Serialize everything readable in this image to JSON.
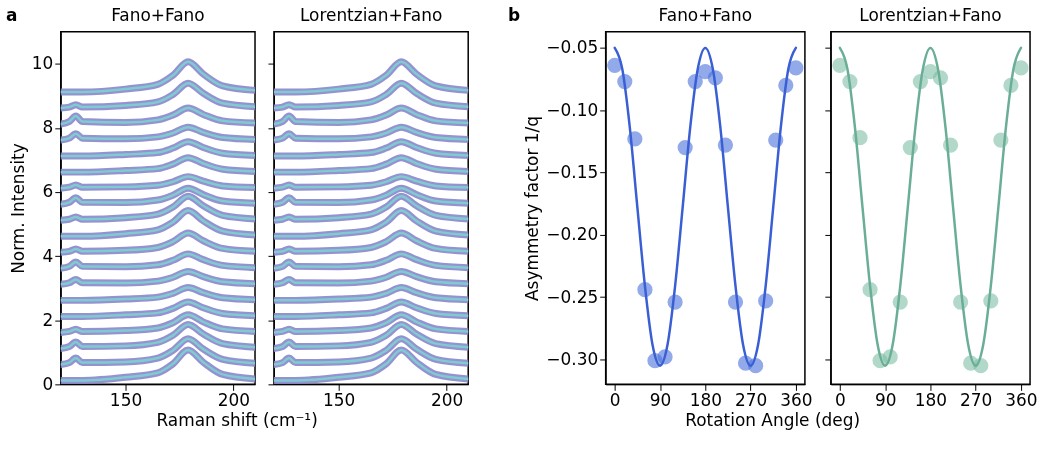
{
  "chart_data": [
    {
      "type": "line",
      "title": "Fano+Fano",
      "xlabel": "Raman shift (cm⁻¹)",
      "ylabel": "Norm. Intensity",
      "annotations": [
        "a"
      ],
      "xlim": [
        120,
        210
      ],
      "ylim": [
        0,
        11
      ],
      "xticks": [
        150,
        200
      ],
      "yticks": [
        0,
        2,
        4,
        6,
        8,
        10
      ],
      "x": [
        120,
        124,
        127,
        130,
        150,
        165,
        172,
        179,
        186,
        195,
        210
      ],
      "series": [
        {
          "color": "#8a86cc",
          "values": [
            0.12,
            0.12,
            0.12,
            0.12,
            0.22,
            0.36,
            0.64,
            1.07,
            0.69,
            0.31,
            0.17
          ]
        },
        {
          "color": "#7fcbd0",
          "values": [
            0.12,
            0.12,
            0.12,
            0.12,
            0.22,
            0.36,
            0.64,
            1.07,
            0.69,
            0.31,
            0.17
          ]
        },
        {
          "color": "#8a86cc",
          "values": [
            0.62,
            0.68,
            0.82,
            0.68,
            0.7,
            0.82,
            1.06,
            1.42,
            1.1,
            0.78,
            0.66
          ]
        },
        {
          "color": "#7fcbd0",
          "values": [
            0.62,
            0.68,
            0.82,
            0.68,
            0.7,
            0.82,
            1.06,
            1.42,
            1.1,
            0.78,
            0.66
          ]
        },
        {
          "color": "#8a86cc",
          "values": [
            1.12,
            1.18,
            1.32,
            1.18,
            1.2,
            1.31,
            1.53,
            1.87,
            1.57,
            1.27,
            1.16
          ]
        },
        {
          "color": "#7fcbd0",
          "values": [
            1.12,
            1.18,
            1.32,
            1.18,
            1.2,
            1.31,
            1.53,
            1.87,
            1.57,
            1.27,
            1.16
          ]
        },
        {
          "color": "#8a86cc",
          "values": [
            1.62,
            1.65,
            1.72,
            1.65,
            1.68,
            1.76,
            1.92,
            2.17,
            1.95,
            1.73,
            1.65
          ]
        },
        {
          "color": "#7fcbd0",
          "values": [
            1.62,
            1.65,
            1.72,
            1.65,
            1.68,
            1.76,
            1.92,
            2.17,
            1.95,
            1.73,
            1.65
          ]
        },
        {
          "color": "#8a86cc",
          "values": [
            2.12,
            2.12,
            2.12,
            2.12,
            2.17,
            2.23,
            2.37,
            2.57,
            2.39,
            2.21,
            2.14
          ]
        },
        {
          "color": "#7fcbd0",
          "values": [
            2.12,
            2.12,
            2.12,
            2.12,
            2.17,
            2.23,
            2.37,
            2.57,
            2.39,
            2.21,
            2.14
          ]
        },
        {
          "color": "#8a86cc",
          "values": [
            2.62,
            2.62,
            2.62,
            2.62,
            2.66,
            2.72,
            2.84,
            3.02,
            2.86,
            2.7,
            2.64
          ]
        },
        {
          "color": "#7fcbd0",
          "values": [
            2.62,
            2.62,
            2.62,
            2.62,
            2.66,
            2.72,
            2.84,
            3.02,
            2.86,
            2.7,
            2.64
          ]
        },
        {
          "color": "#8a86cc",
          "values": [
            3.12,
            3.17,
            3.27,
            3.17,
            3.16,
            3.22,
            3.34,
            3.52,
            3.36,
            3.2,
            3.14
          ]
        },
        {
          "color": "#7fcbd0",
          "values": [
            3.12,
            3.17,
            3.27,
            3.17,
            3.16,
            3.22,
            3.34,
            3.52,
            3.36,
            3.2,
            3.14
          ]
        },
        {
          "color": "#8a86cc",
          "values": [
            3.62,
            3.68,
            3.82,
            3.68,
            3.67,
            3.73,
            3.87,
            4.07,
            3.89,
            3.71,
            3.64
          ]
        },
        {
          "color": "#7fcbd0",
          "values": [
            3.62,
            3.68,
            3.82,
            3.68,
            3.67,
            3.73,
            3.87,
            4.07,
            3.89,
            3.71,
            3.64
          ]
        },
        {
          "color": "#8a86cc",
          "values": [
            4.12,
            4.15,
            4.22,
            4.15,
            4.18,
            4.27,
            4.45,
            4.72,
            4.48,
            4.24,
            4.15
          ]
        },
        {
          "color": "#7fcbd0",
          "values": [
            4.12,
            4.15,
            4.22,
            4.15,
            4.18,
            4.27,
            4.45,
            4.72,
            4.48,
            4.24,
            4.15
          ]
        },
        {
          "color": "#8a86cc",
          "values": [
            4.62,
            4.62,
            4.62,
            4.62,
            4.7,
            4.82,
            5.06,
            5.42,
            5.1,
            4.78,
            4.66
          ]
        },
        {
          "color": "#7fcbd0",
          "values": [
            4.62,
            4.62,
            4.62,
            4.62,
            4.7,
            4.82,
            5.06,
            5.42,
            5.1,
            4.78,
            4.66
          ]
        },
        {
          "color": "#8a86cc",
          "values": [
            5.12,
            5.15,
            5.22,
            5.15,
            5.2,
            5.31,
            5.53,
            5.87,
            5.57,
            5.27,
            5.16
          ]
        },
        {
          "color": "#7fcbd0",
          "values": [
            5.12,
            5.15,
            5.22,
            5.15,
            5.2,
            5.31,
            5.53,
            5.87,
            5.57,
            5.27,
            5.16
          ]
        },
        {
          "color": "#8a86cc",
          "values": [
            5.62,
            5.68,
            5.82,
            5.68,
            5.67,
            5.75,
            5.9,
            6.12,
            5.92,
            5.72,
            5.65
          ]
        },
        {
          "color": "#7fcbd0",
          "values": [
            5.62,
            5.68,
            5.82,
            5.68,
            5.67,
            5.75,
            5.9,
            6.12,
            5.92,
            5.72,
            5.65
          ]
        },
        {
          "color": "#8a86cc",
          "values": [
            6.12,
            6.15,
            6.22,
            6.15,
            6.16,
            6.21,
            6.32,
            6.48,
            6.34,
            6.19,
            6.14
          ]
        },
        {
          "color": "#7fcbd0",
          "values": [
            6.12,
            6.15,
            6.22,
            6.15,
            6.16,
            6.21,
            6.32,
            6.48,
            6.34,
            6.19,
            6.14
          ]
        },
        {
          "color": "#8a86cc",
          "values": [
            6.62,
            6.62,
            6.62,
            6.62,
            6.67,
            6.73,
            6.87,
            7.07,
            6.89,
            6.71,
            6.64
          ]
        },
        {
          "color": "#7fcbd0",
          "values": [
            6.62,
            6.62,
            6.62,
            6.62,
            6.67,
            6.73,
            6.87,
            7.07,
            6.89,
            6.71,
            6.64
          ]
        },
        {
          "color": "#8a86cc",
          "values": [
            7.12,
            7.12,
            7.12,
            7.12,
            7.17,
            7.23,
            7.37,
            7.57,
            7.39,
            7.21,
            7.14
          ]
        },
        {
          "color": "#7fcbd0",
          "values": [
            7.12,
            7.12,
            7.12,
            7.12,
            7.17,
            7.23,
            7.37,
            7.57,
            7.39,
            7.21,
            7.14
          ]
        },
        {
          "color": "#8a86cc",
          "values": [
            7.62,
            7.68,
            7.82,
            7.68,
            7.66,
            7.72,
            7.84,
            8.02,
            7.86,
            7.7,
            7.64
          ]
        },
        {
          "color": "#7fcbd0",
          "values": [
            7.62,
            7.68,
            7.82,
            7.68,
            7.66,
            7.72,
            7.84,
            8.02,
            7.86,
            7.7,
            7.64
          ]
        },
        {
          "color": "#8a86cc",
          "values": [
            8.12,
            8.2,
            8.37,
            8.2,
            8.17,
            8.25,
            8.4,
            8.62,
            8.42,
            8.22,
            8.15
          ]
        },
        {
          "color": "#7fcbd0",
          "values": [
            8.12,
            8.2,
            8.37,
            8.2,
            8.17,
            8.25,
            8.4,
            8.62,
            8.42,
            8.22,
            8.15
          ]
        },
        {
          "color": "#8a86cc",
          "values": [
            8.62,
            8.65,
            8.72,
            8.65,
            8.7,
            8.81,
            9.04,
            9.39,
            9.08,
            8.77,
            8.66
          ]
        },
        {
          "color": "#7fcbd0",
          "values": [
            8.62,
            8.65,
            8.72,
            8.65,
            8.7,
            8.81,
            9.04,
            9.39,
            9.08,
            8.77,
            8.66
          ]
        },
        {
          "color": "#8a86cc",
          "values": [
            9.12,
            9.12,
            9.12,
            9.12,
            9.21,
            9.36,
            9.64,
            10.06,
            9.68,
            9.31,
            9.17
          ]
        },
        {
          "color": "#7fcbd0",
          "values": [
            9.12,
            9.12,
            9.12,
            9.12,
            9.21,
            9.36,
            9.64,
            10.06,
            9.68,
            9.31,
            9.17
          ]
        }
      ]
    },
    {
      "type": "line",
      "title": "Lorentzian+Fano",
      "tick_labels": "x",
      "xlim": [
        120,
        210
      ],
      "ylim": [
        0,
        11
      ],
      "xticks": [
        150,
        200
      ],
      "yticks": [
        0,
        2,
        4,
        6,
        8,
        10
      ],
      "x": [
        120,
        124,
        127,
        130,
        150,
        165,
        172,
        179,
        186,
        195,
        210
      ],
      "series": [
        {
          "color": "#8a86cc",
          "values": [
            0.12,
            0.12,
            0.12,
            0.12,
            0.22,
            0.36,
            0.64,
            1.07,
            0.69,
            0.31,
            0.17
          ]
        },
        {
          "color": "#7fcbd0",
          "values": [
            0.12,
            0.12,
            0.12,
            0.12,
            0.22,
            0.36,
            0.64,
            1.07,
            0.69,
            0.31,
            0.17
          ]
        },
        {
          "color": "#8a86cc",
          "values": [
            0.62,
            0.68,
            0.82,
            0.68,
            0.7,
            0.82,
            1.06,
            1.42,
            1.1,
            0.78,
            0.66
          ]
        },
        {
          "color": "#7fcbd0",
          "values": [
            0.62,
            0.68,
            0.82,
            0.68,
            0.7,
            0.82,
            1.06,
            1.42,
            1.1,
            0.78,
            0.66
          ]
        },
        {
          "color": "#8a86cc",
          "values": [
            1.12,
            1.18,
            1.32,
            1.18,
            1.2,
            1.31,
            1.53,
            1.87,
            1.57,
            1.27,
            1.16
          ]
        },
        {
          "color": "#7fcbd0",
          "values": [
            1.12,
            1.18,
            1.32,
            1.18,
            1.2,
            1.31,
            1.53,
            1.87,
            1.57,
            1.27,
            1.16
          ]
        },
        {
          "color": "#8a86cc",
          "values": [
            1.62,
            1.65,
            1.72,
            1.65,
            1.68,
            1.76,
            1.92,
            2.17,
            1.95,
            1.73,
            1.65
          ]
        },
        {
          "color": "#7fcbd0",
          "values": [
            1.62,
            1.65,
            1.72,
            1.65,
            1.68,
            1.76,
            1.92,
            2.17,
            1.95,
            1.73,
            1.65
          ]
        },
        {
          "color": "#8a86cc",
          "values": [
            2.12,
            2.12,
            2.12,
            2.12,
            2.17,
            2.23,
            2.37,
            2.57,
            2.39,
            2.21,
            2.14
          ]
        },
        {
          "color": "#7fcbd0",
          "values": [
            2.12,
            2.12,
            2.12,
            2.12,
            2.17,
            2.23,
            2.37,
            2.57,
            2.39,
            2.21,
            2.14
          ]
        },
        {
          "color": "#8a86cc",
          "values": [
            2.62,
            2.62,
            2.62,
            2.62,
            2.66,
            2.72,
            2.84,
            3.02,
            2.86,
            2.7,
            2.64
          ]
        },
        {
          "color": "#7fcbd0",
          "values": [
            2.62,
            2.62,
            2.62,
            2.62,
            2.66,
            2.72,
            2.84,
            3.02,
            2.86,
            2.7,
            2.64
          ]
        },
        {
          "color": "#8a86cc",
          "values": [
            3.12,
            3.17,
            3.27,
            3.17,
            3.16,
            3.22,
            3.34,
            3.52,
            3.36,
            3.2,
            3.14
          ]
        },
        {
          "color": "#7fcbd0",
          "values": [
            3.12,
            3.17,
            3.27,
            3.17,
            3.16,
            3.22,
            3.34,
            3.52,
            3.36,
            3.2,
            3.14
          ]
        },
        {
          "color": "#8a86cc",
          "values": [
            3.62,
            3.68,
            3.82,
            3.68,
            3.67,
            3.73,
            3.87,
            4.07,
            3.89,
            3.71,
            3.64
          ]
        },
        {
          "color": "#7fcbd0",
          "values": [
            3.62,
            3.68,
            3.82,
            3.68,
            3.67,
            3.73,
            3.87,
            4.07,
            3.89,
            3.71,
            3.64
          ]
        },
        {
          "color": "#8a86cc",
          "values": [
            4.12,
            4.15,
            4.22,
            4.15,
            4.18,
            4.27,
            4.45,
            4.72,
            4.48,
            4.24,
            4.15
          ]
        },
        {
          "color": "#7fcbd0",
          "values": [
            4.12,
            4.15,
            4.22,
            4.15,
            4.18,
            4.27,
            4.45,
            4.72,
            4.48,
            4.24,
            4.15
          ]
        },
        {
          "color": "#8a86cc",
          "values": [
            4.62,
            4.62,
            4.62,
            4.62,
            4.7,
            4.82,
            5.06,
            5.42,
            5.1,
            4.78,
            4.66
          ]
        },
        {
          "color": "#7fcbd0",
          "values": [
            4.62,
            4.62,
            4.62,
            4.62,
            4.7,
            4.82,
            5.06,
            5.42,
            5.1,
            4.78,
            4.66
          ]
        },
        {
          "color": "#8a86cc",
          "values": [
            5.12,
            5.15,
            5.22,
            5.15,
            5.2,
            5.31,
            5.53,
            5.87,
            5.57,
            5.27,
            5.16
          ]
        },
        {
          "color": "#7fcbd0",
          "values": [
            5.12,
            5.15,
            5.22,
            5.15,
            5.2,
            5.31,
            5.53,
            5.87,
            5.57,
            5.27,
            5.16
          ]
        },
        {
          "color": "#8a86cc",
          "values": [
            5.62,
            5.68,
            5.82,
            5.68,
            5.67,
            5.75,
            5.9,
            6.12,
            5.92,
            5.72,
            5.65
          ]
        },
        {
          "color": "#7fcbd0",
          "values": [
            5.62,
            5.68,
            5.82,
            5.68,
            5.67,
            5.75,
            5.9,
            6.12,
            5.92,
            5.72,
            5.65
          ]
        },
        {
          "color": "#8a86cc",
          "values": [
            6.12,
            6.15,
            6.22,
            6.15,
            6.16,
            6.21,
            6.32,
            6.48,
            6.34,
            6.19,
            6.14
          ]
        },
        {
          "color": "#7fcbd0",
          "values": [
            6.12,
            6.15,
            6.22,
            6.15,
            6.16,
            6.21,
            6.32,
            6.48,
            6.34,
            6.19,
            6.14
          ]
        },
        {
          "color": "#8a86cc",
          "values": [
            6.62,
            6.62,
            6.62,
            6.62,
            6.67,
            6.73,
            6.87,
            7.07,
            6.89,
            6.71,
            6.64
          ]
        },
        {
          "color": "#7fcbd0",
          "values": [
            6.62,
            6.62,
            6.62,
            6.62,
            6.67,
            6.73,
            6.87,
            7.07,
            6.89,
            6.71,
            6.64
          ]
        },
        {
          "color": "#8a86cc",
          "values": [
            7.12,
            7.12,
            7.12,
            7.12,
            7.17,
            7.23,
            7.37,
            7.57,
            7.39,
            7.21,
            7.14
          ]
        },
        {
          "color": "#7fcbd0",
          "values": [
            7.12,
            7.12,
            7.12,
            7.12,
            7.17,
            7.23,
            7.37,
            7.57,
            7.39,
            7.21,
            7.14
          ]
        },
        {
          "color": "#8a86cc",
          "values": [
            7.62,
            7.68,
            7.82,
            7.68,
            7.66,
            7.72,
            7.84,
            8.02,
            7.86,
            7.7,
            7.64
          ]
        },
        {
          "color": "#7fcbd0",
          "values": [
            7.62,
            7.68,
            7.82,
            7.68,
            7.66,
            7.72,
            7.84,
            8.02,
            7.86,
            7.7,
            7.64
          ]
        },
        {
          "color": "#8a86cc",
          "values": [
            8.12,
            8.2,
            8.37,
            8.2,
            8.17,
            8.25,
            8.4,
            8.62,
            8.42,
            8.22,
            8.15
          ]
        },
        {
          "color": "#7fcbd0",
          "values": [
            8.12,
            8.2,
            8.37,
            8.2,
            8.17,
            8.25,
            8.4,
            8.62,
            8.42,
            8.22,
            8.15
          ]
        },
        {
          "color": "#8a86cc",
          "values": [
            8.62,
            8.65,
            8.72,
            8.65,
            8.7,
            8.81,
            9.04,
            9.39,
            9.08,
            8.77,
            8.66
          ]
        },
        {
          "color": "#7fcbd0",
          "values": [
            8.62,
            8.65,
            8.72,
            8.65,
            8.7,
            8.81,
            9.04,
            9.39,
            9.08,
            8.77,
            8.66
          ]
        },
        {
          "color": "#8a86cc",
          "values": [
            9.12,
            9.12,
            9.12,
            9.12,
            9.21,
            9.36,
            9.64,
            10.06,
            9.68,
            9.31,
            9.17
          ]
        },
        {
          "color": "#7fcbd0",
          "values": [
            9.12,
            9.12,
            9.12,
            9.12,
            9.21,
            9.36,
            9.64,
            10.06,
            9.68,
            9.31,
            9.17
          ]
        }
      ]
    },
    {
      "type": "scatter",
      "title": "Fano+Fano",
      "xlabel": "Rotation Angle (deg)",
      "ylabel": "Asymmetry factor 1/q",
      "annotations": [
        "b"
      ],
      "xlim": [
        -18,
        378
      ],
      "ylim": [
        -0.32,
        -0.037
      ],
      "xticks": [
        0,
        90,
        180,
        270,
        360
      ],
      "yticks": [
        {
          "value": -0.3,
          "label": "−0.30"
        },
        -0.25,
        {
          "value": -0.2,
          "label": "−0.20"
        },
        -0.15,
        {
          "value": -0.1,
          "label": "−0.10"
        },
        -0.05
      ],
      "series": [
        {
          "type": "scatter",
          "color": "#4a72dc",
          "x": [
            0,
            20,
            40,
            60,
            80,
            100,
            120,
            140,
            160,
            180,
            200,
            220,
            240,
            260,
            280,
            300,
            320,
            340,
            360
          ],
          "values": [
            -0.064,
            -0.077,
            -0.123,
            -0.244,
            -0.301,
            -0.298,
            -0.254,
            -0.13,
            -0.077,
            -0.069,
            -0.074,
            -0.128,
            -0.254,
            -0.303,
            -0.305,
            -0.253,
            -0.124,
            -0.08,
            -0.066
          ]
        },
        {
          "type": "line",
          "color": "#3a5fd4",
          "x": [
            0,
            15,
            30,
            45,
            60,
            75,
            90,
            105,
            120,
            135,
            150,
            165,
            180,
            195,
            210,
            225,
            240,
            255,
            270,
            285,
            300,
            315,
            330,
            345,
            360
          ],
          "values": [
            -0.05,
            -0.067,
            -0.114,
            -0.178,
            -0.241,
            -0.288,
            -0.305,
            -0.288,
            -0.241,
            -0.178,
            -0.114,
            -0.067,
            -0.05,
            -0.067,
            -0.114,
            -0.178,
            -0.241,
            -0.288,
            -0.305,
            -0.288,
            -0.241,
            -0.178,
            -0.114,
            -0.067,
            -0.05
          ]
        }
      ]
    },
    {
      "type": "scatter",
      "title": "Lorentzian+Fano",
      "tick_labels": "x",
      "xlim": [
        -18,
        378
      ],
      "ylim": [
        -0.32,
        -0.037
      ],
      "xticks": [
        0,
        90,
        180,
        270,
        360
      ],
      "yticks": [
        -0.3,
        -0.25,
        -0.2,
        -0.15,
        -0.1,
        -0.05
      ],
      "series": [
        {
          "type": "scatter",
          "color": "#7fbfa6",
          "x": [
            0,
            20,
            40,
            60,
            80,
            100,
            120,
            140,
            160,
            180,
            200,
            220,
            240,
            260,
            280,
            300,
            320,
            340,
            360
          ],
          "values": [
            -0.064,
            -0.077,
            -0.122,
            -0.244,
            -0.301,
            -0.298,
            -0.254,
            -0.13,
            -0.077,
            -0.069,
            -0.074,
            -0.128,
            -0.254,
            -0.303,
            -0.305,
            -0.253,
            -0.124,
            -0.08,
            -0.066
          ]
        },
        {
          "type": "line",
          "color": "#6aae98",
          "x": [
            0,
            15,
            30,
            45,
            60,
            75,
            90,
            105,
            120,
            135,
            150,
            165,
            180,
            195,
            210,
            225,
            240,
            255,
            270,
            285,
            300,
            315,
            330,
            345,
            360
          ],
          "values": [
            -0.05,
            -0.067,
            -0.114,
            -0.178,
            -0.241,
            -0.288,
            -0.305,
            -0.288,
            -0.241,
            -0.178,
            -0.114,
            -0.067,
            -0.05,
            -0.067,
            -0.114,
            -0.178,
            -0.241,
            -0.288,
            -0.305,
            -0.288,
            -0.241,
            -0.178,
            -0.114,
            -0.067,
            -0.05
          ]
        }
      ]
    }
  ]
}
